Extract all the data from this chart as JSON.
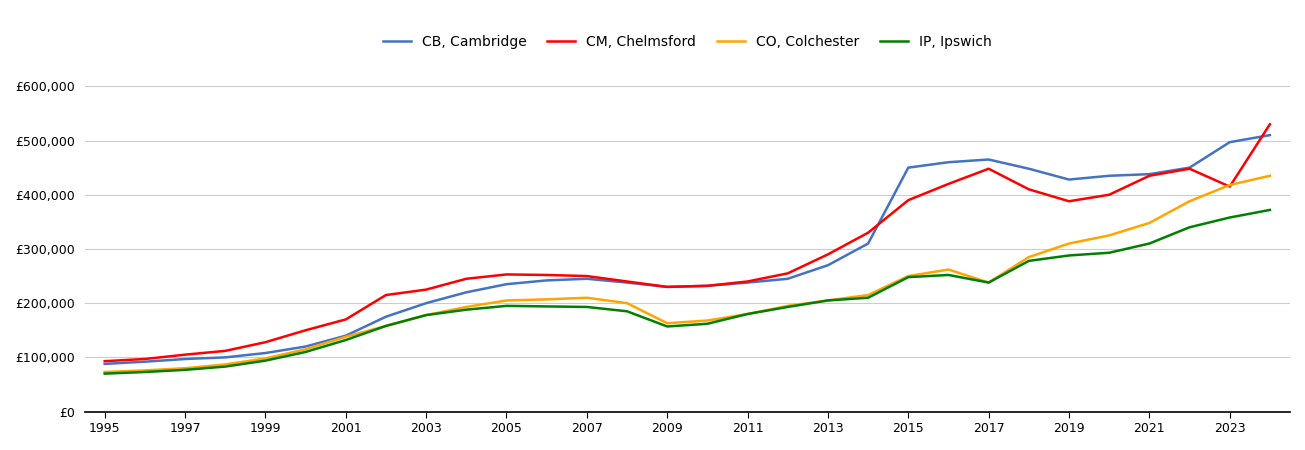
{
  "legend_entries": [
    "CB, Cambridge",
    "CM, Chelmsford",
    "CO, Colchester",
    "IP, Ipswich"
  ],
  "colors": {
    "CB, Cambridge": "#4472C4",
    "CM, Chelmsford": "#FF0000",
    "CO, Colchester": "#FFA500",
    "IP, Ipswich": "#008000"
  },
  "years": [
    1995,
    1996,
    1997,
    1998,
    1999,
    2000,
    2001,
    2002,
    2003,
    2004,
    2005,
    2006,
    2007,
    2008,
    2009,
    2010,
    2011,
    2012,
    2013,
    2014,
    2015,
    2016,
    2017,
    2018,
    2019,
    2020,
    2021,
    2022,
    2023,
    2024
  ],
  "CB_Cambridge": [
    88000,
    92000,
    97000,
    100000,
    108000,
    120000,
    140000,
    175000,
    200000,
    220000,
    235000,
    242000,
    245000,
    238000,
    230000,
    232000,
    238000,
    245000,
    270000,
    310000,
    450000,
    460000,
    465000,
    448000,
    428000,
    435000,
    438000,
    450000,
    497000,
    510000
  ],
  "CM_Chelmsford": [
    93000,
    97000,
    105000,
    112000,
    128000,
    150000,
    170000,
    215000,
    225000,
    245000,
    253000,
    252000,
    250000,
    240000,
    230000,
    232000,
    240000,
    255000,
    290000,
    330000,
    390000,
    420000,
    448000,
    410000,
    388000,
    400000,
    435000,
    448000,
    415000,
    530000
  ],
  "CO_Colchester": [
    73000,
    76000,
    80000,
    87000,
    98000,
    115000,
    138000,
    158000,
    178000,
    193000,
    205000,
    207000,
    210000,
    200000,
    163000,
    168000,
    180000,
    195000,
    205000,
    215000,
    250000,
    262000,
    238000,
    285000,
    310000,
    325000,
    348000,
    388000,
    418000,
    435000
  ],
  "IP_Ipswich": [
    70000,
    73000,
    77000,
    83000,
    94000,
    110000,
    132000,
    158000,
    178000,
    188000,
    195000,
    194000,
    193000,
    185000,
    157000,
    162000,
    180000,
    193000,
    205000,
    210000,
    248000,
    252000,
    238000,
    278000,
    288000,
    293000,
    310000,
    340000,
    358000,
    372000
  ],
  "ylim": [
    0,
    630000
  ],
  "yticks": [
    0,
    100000,
    200000,
    300000,
    400000,
    500000,
    600000
  ],
  "xticks": [
    1995,
    1997,
    1999,
    2001,
    2003,
    2005,
    2007,
    2009,
    2011,
    2013,
    2015,
    2017,
    2019,
    2021,
    2023
  ],
  "xlim_start": 1994.5,
  "xlim_end": 2024.5,
  "background_color": "#FFFFFF",
  "grid_color": "#CCCCCC",
  "line_width": 1.8
}
